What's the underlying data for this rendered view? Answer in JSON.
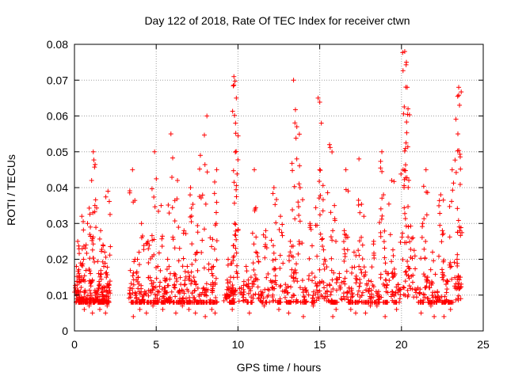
{
  "chart_data": {
    "type": "scatter",
    "title": "Day 122 of 2018, Rate Of TEC Index for receiver ctwn",
    "xlabel": "GPS time / hours",
    "ylabel": "ROTI / TECUs",
    "xlim": [
      0,
      25
    ],
    "ylim": [
      0,
      0.08
    ],
    "xticks": [
      "0",
      "5",
      "10",
      "15",
      "20",
      "25"
    ],
    "yticks": [
      "0",
      "0.01",
      "0.02",
      "0.03",
      "0.04",
      "0.05",
      "0.06",
      "0.07",
      "0.08"
    ],
    "grid": true,
    "marker": "+",
    "colors": {
      "series": "#ff0000",
      "grid": "#a0a0a0"
    },
    "series": [
      {
        "name": "",
        "x": [
          0.05,
          0.12,
          0.2,
          0.3,
          0.42,
          0.55,
          0.68,
          0.8,
          0.92,
          1.05,
          1.15,
          1.25,
          1.35,
          1.48,
          1.6,
          1.72,
          1.85,
          1.95,
          2.05,
          2.1,
          0.25,
          0.6,
          0.9,
          1.1,
          1.3,
          1.55,
          1.75,
          1.9,
          2.0,
          0.45,
          3.4,
          3.55,
          3.7,
          3.9,
          4.1,
          4.3,
          4.5,
          4.7,
          4.9,
          5.1,
          5.3,
          5.5,
          5.7,
          5.9,
          6.1,
          6.3,
          6.5,
          6.7,
          6.9,
          7.1,
          7.3,
          7.5,
          7.7,
          7.9,
          8.1,
          8.3,
          8.5,
          8.7,
          3.6,
          4.0,
          4.4,
          4.8,
          5.0,
          5.4,
          5.8,
          6.2,
          6.6,
          7.0,
          7.4,
          7.6,
          8.0,
          8.4,
          8.6,
          9.2,
          9.4,
          9.55,
          9.7,
          9.8,
          9.9,
          9.75,
          9.85,
          9.6,
          9.65,
          10.2,
          10.5,
          10.8,
          11.1,
          11.4,
          11.7,
          12.0,
          12.3,
          12.6,
          12.9,
          13.2,
          13.5,
          13.8,
          14.1,
          14.4,
          14.7,
          15.0,
          15.3,
          15.6,
          15.9,
          16.2,
          16.5,
          16.8,
          17.1,
          17.4,
          17.7,
          18.0,
          18.3,
          18.6,
          18.9,
          19.2,
          19.5,
          19.8,
          20.1,
          20.4,
          20.7,
          21.0,
          21.3,
          21.6,
          21.9,
          22.2,
          22.5,
          22.8,
          23.1,
          23.4,
          23.6,
          11.0,
          12.2,
          13.4,
          13.6,
          14.9,
          15.1,
          15.6,
          16.6,
          17.4,
          18.8,
          19.4,
          20.2,
          20.3,
          20.35,
          20.4,
          21.5,
          22.4,
          23.5,
          23.55,
          23.45,
          12.5,
          13.1,
          14.6,
          15.8,
          16.9,
          17.8,
          18.5,
          19.0,
          19.7,
          21.2,
          21.8,
          22.6,
          23.0,
          10.7,
          11.6,
          14.0,
          16.0,
          17.2,
          18.1,
          22.0
        ],
        "y": [
          0.012,
          0.018,
          0.025,
          0.01,
          0.015,
          0.02,
          0.009,
          0.03,
          0.014,
          0.042,
          0.05,
          0.035,
          0.011,
          0.016,
          0.028,
          0.012,
          0.022,
          0.015,
          0.039,
          0.013,
          0.008,
          0.006,
          0.007,
          0.005,
          0.009,
          0.006,
          0.008,
          0.005,
          0.007,
          0.032,
          0.012,
          0.045,
          0.02,
          0.015,
          0.03,
          0.011,
          0.025,
          0.014,
          0.05,
          0.018,
          0.035,
          0.012,
          0.02,
          0.055,
          0.016,
          0.042,
          0.013,
          0.028,
          0.018,
          0.04,
          0.015,
          0.022,
          0.049,
          0.012,
          0.06,
          0.026,
          0.018,
          0.045,
          0.004,
          0.006,
          0.005,
          0.007,
          0.008,
          0.006,
          0.009,
          0.005,
          0.007,
          0.006,
          0.005,
          0.008,
          0.004,
          0.006,
          0.005,
          0.01,
          0.02,
          0.015,
          0.012,
          0.03,
          0.065,
          0.071,
          0.058,
          0.008,
          0.006,
          0.012,
          0.018,
          0.015,
          0.022,
          0.011,
          0.028,
          0.014,
          0.02,
          0.032,
          0.013,
          0.025,
          0.017,
          0.04,
          0.012,
          0.03,
          0.015,
          0.045,
          0.02,
          0.013,
          0.035,
          0.016,
          0.028,
          0.012,
          0.022,
          0.018,
          0.032,
          0.014,
          0.025,
          0.011,
          0.038,
          0.016,
          0.021,
          0.013,
          0.045,
          0.018,
          0.026,
          0.012,
          0.03,
          0.015,
          0.022,
          0.011,
          0.028,
          0.014,
          0.045,
          0.02,
          0.015,
          0.045,
          0.04,
          0.07,
          0.057,
          0.065,
          0.058,
          0.052,
          0.045,
          0.048,
          0.05,
          0.042,
          0.078,
          0.075,
          0.068,
          0.062,
          0.045,
          0.038,
          0.068,
          0.063,
          0.055,
          0.006,
          0.005,
          0.007,
          0.004,
          0.006,
          0.005,
          0.007,
          0.004,
          0.006,
          0.005,
          0.007,
          0.004,
          0.006,
          0.005,
          0.007,
          0.004,
          0.006,
          0.005,
          0.007,
          0.004
        ]
      }
    ]
  }
}
